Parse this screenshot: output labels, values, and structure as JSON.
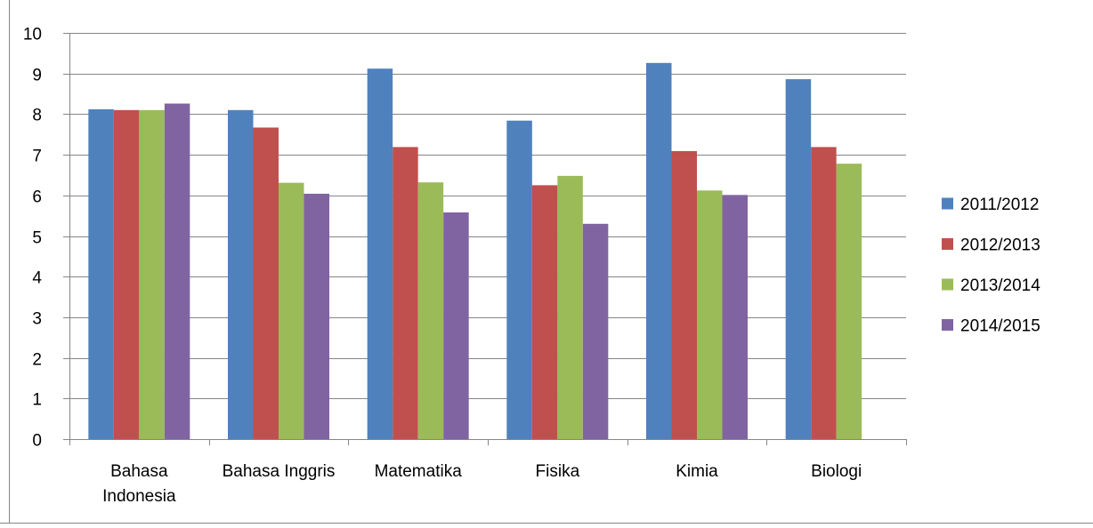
{
  "chart_data": {
    "type": "bar",
    "categories": [
      [
        "Bahasa",
        "Indonesia"
      ],
      [
        "Bahasa Inggris"
      ],
      [
        "Matematika"
      ],
      [
        "Fisika"
      ],
      [
        "Kimia"
      ],
      [
        "Biologi"
      ]
    ],
    "series": [
      {
        "name": "2011/2012",
        "color": "#4F81BD",
        "values": [
          8.12,
          8.1,
          9.12,
          7.84,
          9.26,
          8.86
        ]
      },
      {
        "name": "2012/2013",
        "color": "#C0504D",
        "values": [
          8.1,
          7.67,
          7.19,
          6.25,
          7.09,
          7.19
        ]
      },
      {
        "name": "2013/2014",
        "color": "#9BBB59",
        "values": [
          8.1,
          6.31,
          6.32,
          6.48,
          6.12,
          6.78
        ]
      },
      {
        "name": "2014/2015",
        "color": "#8064A2",
        "values": [
          8.26,
          6.04,
          5.58,
          5.3,
          6.01,
          null
        ]
      }
    ],
    "ylim": [
      0,
      10
    ],
    "yticks": [
      0,
      1,
      2,
      3,
      4,
      5,
      6,
      7,
      8,
      9,
      10
    ],
    "grid": true,
    "legend_position": "right",
    "title": "",
    "xlabel": "",
    "ylabel": ""
  }
}
